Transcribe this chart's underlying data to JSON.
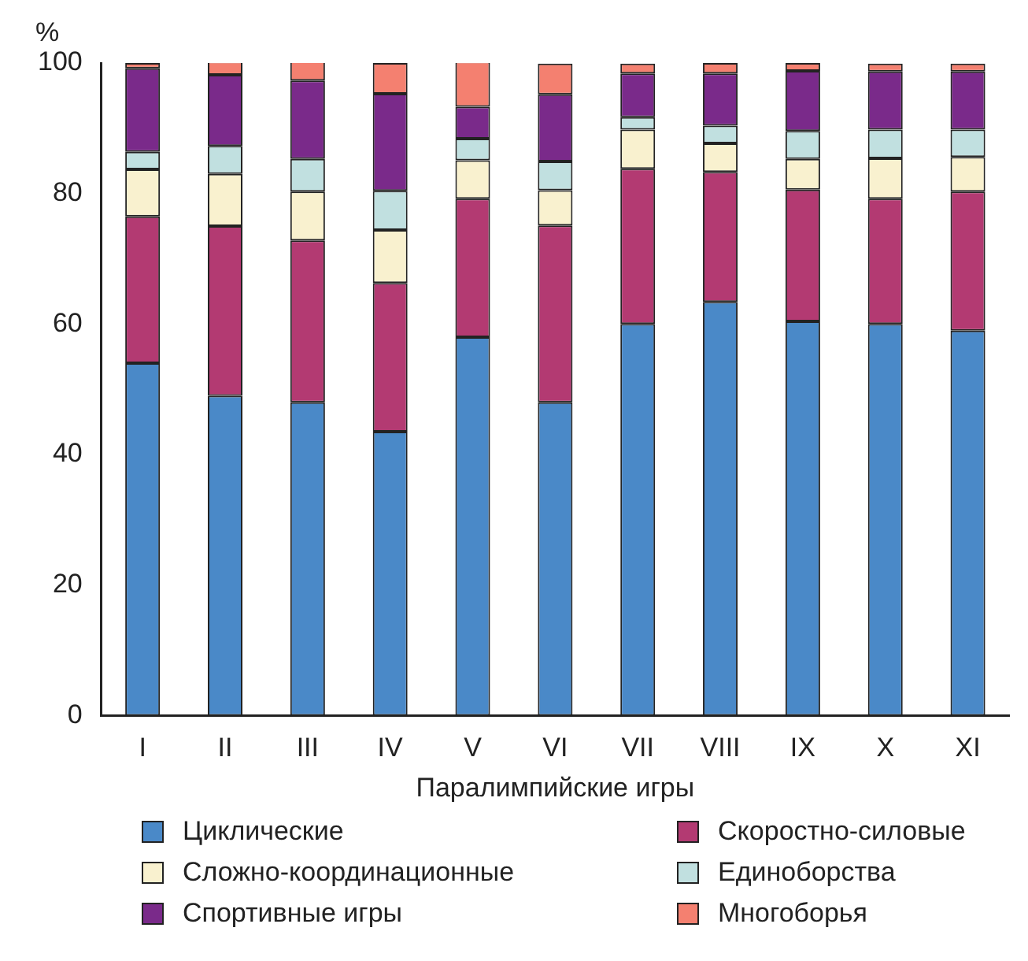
{
  "chart_data": {
    "type": "bar",
    "stacked": true,
    "ylabel": "%",
    "xlabel": "Паралимпийские игры",
    "categories": [
      "I",
      "II",
      "III",
      "IV",
      "V",
      "VI",
      "VII",
      "VIII",
      "IX",
      "X",
      "XI"
    ],
    "series": [
      {
        "name": "Циклические",
        "color": "#4a89c8",
        "values": [
          54,
          49,
          48,
          43.5,
          58,
          48,
          60,
          63.4,
          60.4,
          60,
          59
        ]
      },
      {
        "name": "Скоростно-силовые",
        "color": "#b33a72",
        "values": [
          22.5,
          26,
          24.8,
          22.8,
          21.2,
          27.1,
          23.8,
          19.9,
          20.2,
          19.2,
          21.3
        ]
      },
      {
        "name": "Сложно-координационные",
        "color": "#f9f1cf",
        "values": [
          7.2,
          8,
          7.5,
          8.1,
          5.9,
          5.4,
          6,
          4.4,
          4.7,
          6.2,
          5.3
        ]
      },
      {
        "name": "Единоборства",
        "color": "#c1e0e0",
        "values": [
          2.7,
          4.3,
          5,
          6,
          3.3,
          4.4,
          1.9,
          2.7,
          4.3,
          4.4,
          4.2
        ]
      },
      {
        "name": "Спортивные игры",
        "color": "#7a2a8a",
        "values": [
          12.8,
          10.9,
          12,
          14.9,
          4.9,
          10.3,
          6.7,
          8,
          9.2,
          8.9,
          8.9
        ]
      },
      {
        "name": "Многоборья",
        "color": "#f48070",
        "values": [
          0.8,
          2,
          3.1,
          4.7,
          6.9,
          4.7,
          1.5,
          1.6,
          1.2,
          1.2,
          1.2
        ]
      }
    ],
    "ylim": [
      0,
      100
    ],
    "yticks": [
      0,
      20,
      40,
      60,
      80,
      100
    ],
    "grid": false,
    "legend": "bottom"
  }
}
